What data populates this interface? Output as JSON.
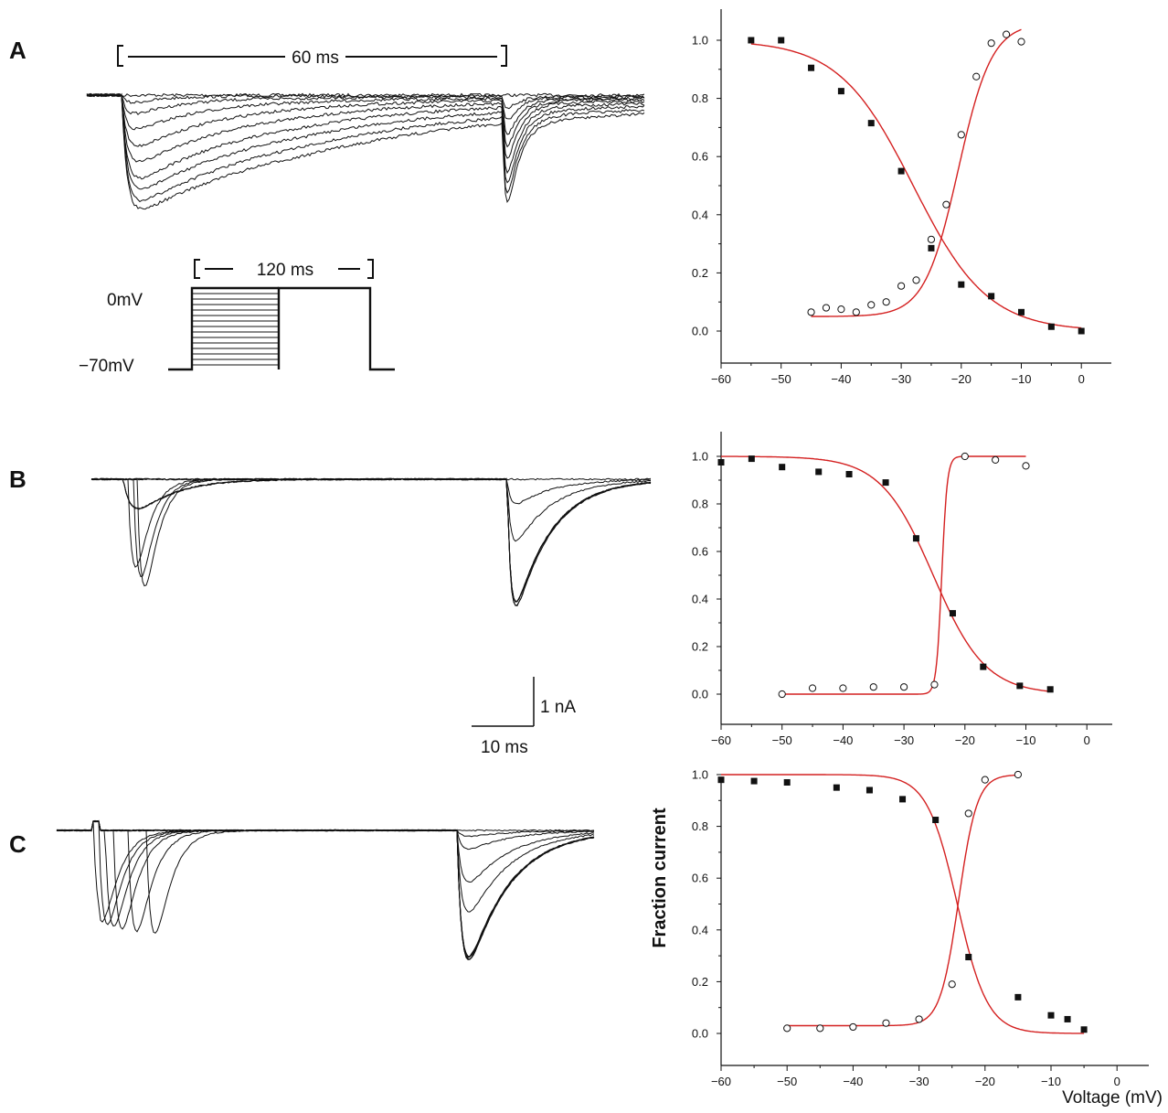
{
  "panels": [
    {
      "letter": "A",
      "time_bracket_label": "60 ms",
      "protocol": {
        "bracket_label": "120 ms",
        "level_high_label": "0mV",
        "level_low_label": "−70mV"
      }
    },
    {
      "letter": "B",
      "scale_bar": {
        "current_label": "1 nA",
        "time_label": "10 ms"
      }
    },
    {
      "letter": "C"
    }
  ],
  "colors": {
    "fit_curve": "#d42020",
    "marker": "#111111",
    "trace": "#111111"
  },
  "chart_data": [
    {
      "type": "scatter",
      "panel": "A",
      "xlim": [
        -60,
        5
      ],
      "ylim": [
        -0.1,
        1.1
      ],
      "x_ticks": [
        -60,
        -50,
        -40,
        -30,
        -20,
        -10,
        0
      ],
      "x_tick_labels": [
        "−60",
        "−50",
        "−40",
        "−30",
        "−20",
        "−10",
        "0"
      ],
      "y_ticks": [
        0.0,
        0.2,
        0.4,
        0.6,
        0.8,
        1.0
      ],
      "y_tick_labels": [
        "0.0",
        "0.2",
        "0.4",
        "0.6",
        "0.8",
        "1.0"
      ],
      "series": [
        {
          "marker": "filled-square",
          "x": [
            -55,
            -50,
            -45,
            -40,
            -35,
            -30,
            -25,
            -20,
            -15,
            -10,
            -5,
            0
          ],
          "y": [
            1.0,
            1.0,
            0.905,
            0.825,
            0.715,
            0.55,
            0.285,
            0.16,
            0.12,
            0.065,
            0.015,
            0.0
          ]
        },
        {
          "marker": "open-circle",
          "x": [
            -45,
            -42.5,
            -40,
            -37.5,
            -35,
            -32.5,
            -30,
            -27.5,
            -25,
            -22.5,
            -20,
            -17.5,
            -15,
            -12.5,
            -10
          ],
          "y": [
            0.065,
            0.08,
            0.075,
            0.065,
            0.09,
            0.1,
            0.155,
            0.175,
            0.315,
            0.435,
            0.675,
            0.875,
            0.99,
            1.02,
            0.995
          ]
        }
      ],
      "fits": [
        {
          "kind": "inactivation",
          "vhalf": -28,
          "k": 6.2,
          "bottom": 0.0,
          "top": 1.0,
          "x_range": [
            -55,
            0
          ]
        },
        {
          "kind": "activation",
          "vhalf": -20.5,
          "k": 2.8,
          "bottom": 0.05,
          "top": 1.06,
          "x_range": [
            -45,
            -10
          ]
        }
      ]
    },
    {
      "type": "scatter",
      "panel": "B",
      "xlim": [
        -60,
        5
      ],
      "ylim": [
        -0.1,
        1.1
      ],
      "x_ticks": [
        -60,
        -50,
        -40,
        -30,
        -20,
        -10,
        0
      ],
      "x_tick_labels": [
        "−60",
        "−50",
        "−40",
        "−30",
        "−20",
        "−10",
        "0"
      ],
      "y_ticks": [
        0.0,
        0.2,
        0.4,
        0.6,
        0.8,
        1.0
      ],
      "y_tick_labels": [
        "0.0",
        "0.2",
        "0.4",
        "0.6",
        "0.8",
        "1.0"
      ],
      "series": [
        {
          "marker": "filled-square",
          "x": [
            -60,
            -55,
            -50,
            -44,
            -39,
            -33,
            -28,
            -22,
            -17,
            -11,
            -6
          ],
          "y": [
            0.975,
            0.99,
            0.955,
            0.935,
            0.925,
            0.89,
            0.655,
            0.34,
            0.115,
            0.035,
            0.02
          ]
        },
        {
          "marker": "open-circle",
          "x": [
            -50,
            -45,
            -40,
            -35,
            -30,
            -25,
            -20,
            -15,
            -10
          ],
          "y": [
            0.0,
            0.025,
            0.025,
            0.03,
            0.03,
            0.04,
            1.0,
            0.985,
            0.96
          ]
        }
      ],
      "fits": [
        {
          "kind": "inactivation",
          "vhalf": -25.2,
          "k": 4.3,
          "bottom": 0.0,
          "top": 1.0,
          "x_range": [
            -60,
            -6
          ]
        },
        {
          "kind": "activation",
          "vhalf": -23.8,
          "k": 0.45,
          "bottom": 0.0,
          "top": 1.0,
          "x_range": [
            -50,
            -10
          ]
        }
      ]
    },
    {
      "type": "scatter",
      "panel": "C",
      "xlim": [
        -60,
        5
      ],
      "ylim": [
        -0.1,
        1.1
      ],
      "x_ticks": [
        -60,
        -50,
        -40,
        -30,
        -20,
        -10,
        0
      ],
      "x_tick_labels": [
        "−60",
        "−50",
        "−40",
        "−30",
        "−20",
        "−10",
        "0"
      ],
      "y_ticks": [
        0.0,
        0.2,
        0.4,
        0.6,
        0.8,
        1.0
      ],
      "y_tick_labels": [
        "0.0",
        "0.2",
        "0.4",
        "0.6",
        "0.8",
        "1.0"
      ],
      "xlabel": "Voltage (mV)",
      "ylabel": "Fraction current",
      "series": [
        {
          "marker": "filled-square",
          "x": [
            -60,
            -55,
            -50,
            -42.5,
            -37.5,
            -32.5,
            -27.5,
            -22.5,
            -15,
            -10,
            -7.5,
            -5
          ],
          "y": [
            0.98,
            0.975,
            0.97,
            0.95,
            0.94,
            0.905,
            0.825,
            0.295,
            0.14,
            0.07,
            0.055,
            0.015
          ]
        },
        {
          "marker": "open-circle",
          "x": [
            -50,
            -45,
            -40,
            -35,
            -30,
            -25,
            -22.5,
            -20,
            -15
          ],
          "y": [
            0.02,
            0.02,
            0.025,
            0.04,
            0.055,
            0.19,
            0.85,
            0.98,
            1.0
          ]
        }
      ],
      "fits": [
        {
          "kind": "inactivation",
          "vhalf": -24.2,
          "k": 2.3,
          "bottom": 0.0,
          "top": 1.0,
          "x_range": [
            -60,
            -5
          ]
        },
        {
          "kind": "activation",
          "vhalf": -24.0,
          "k": 1.4,
          "bottom": 0.03,
          "top": 1.0,
          "x_range": [
            -50,
            -15
          ]
        }
      ]
    }
  ]
}
